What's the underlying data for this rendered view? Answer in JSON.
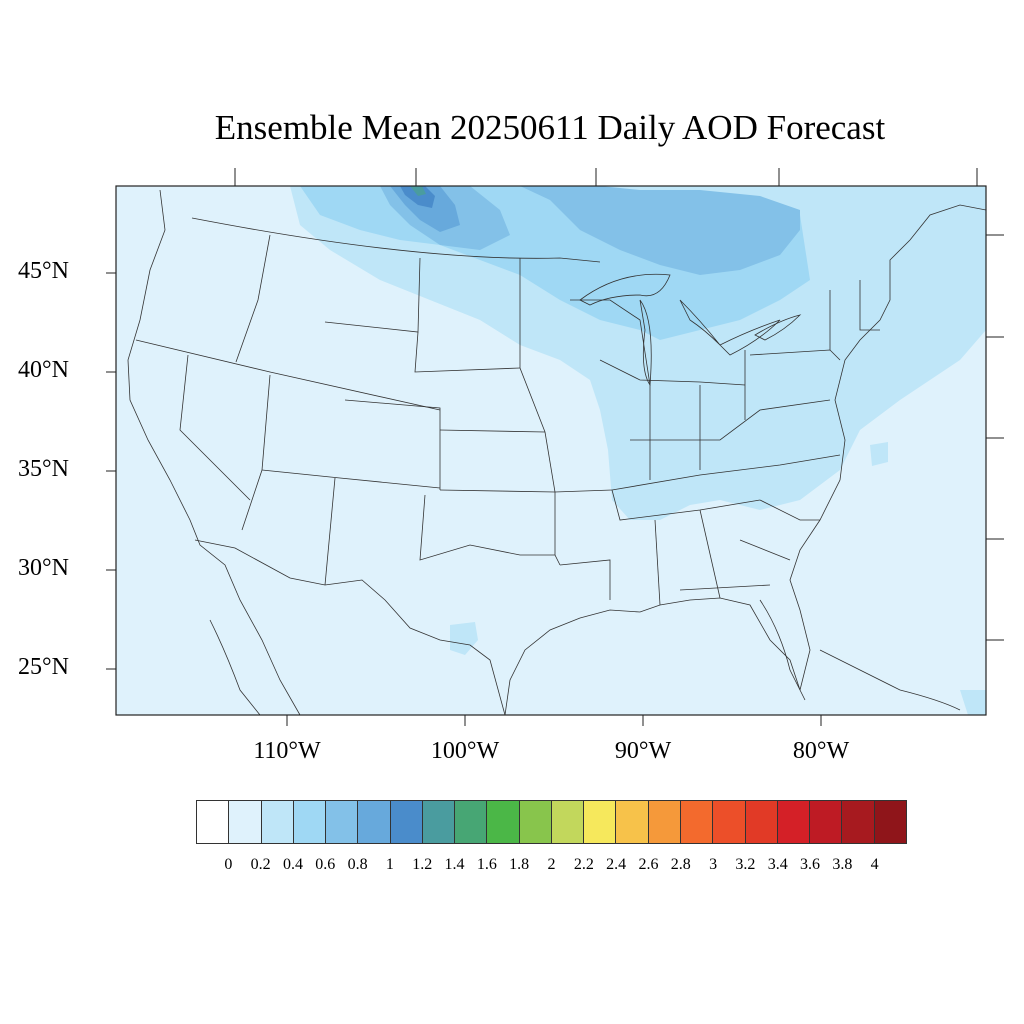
{
  "title": "Ensemble Mean 20250611 Daily AOD Forecast",
  "lat_labels": [
    "45°N",
    "40°N",
    "35°N",
    "30°N",
    "25°N"
  ],
  "lon_labels": [
    "110°W",
    "100°W",
    "90°W",
    "80°W"
  ],
  "colorbar": {
    "colors": [
      "#ffffff",
      "#dff2fc",
      "#bfe6f8",
      "#9fd8f4",
      "#83c1e8",
      "#67a9dc",
      "#4a8ccb",
      "#4a9c9f",
      "#47a674",
      "#4bb747",
      "#88c54c",
      "#c2d75c",
      "#f6e85c",
      "#f7c24a",
      "#f5993a",
      "#f36a2d",
      "#ec4f29",
      "#e13a26",
      "#d42027",
      "#be1b24",
      "#a71a1f",
      "#8f151a"
    ],
    "labels": [
      "0",
      "0.2",
      "0.4",
      "0.6",
      "0.8",
      "1",
      "1.2",
      "1.4",
      "1.6",
      "1.8",
      "2",
      "2.2",
      "2.4",
      "2.6",
      "2.8",
      "3",
      "3.2",
      "3.4",
      "3.6",
      "3.8",
      "4"
    ]
  },
  "field_colors": {
    "background": "#dff2fc",
    "light": "#bfe6f8",
    "medium": "#9fd8f4",
    "dark": "#83c1e8",
    "darker": "#67a9dc",
    "deepest": "#4a8ccb",
    "teal": "#4a9c9f"
  }
}
